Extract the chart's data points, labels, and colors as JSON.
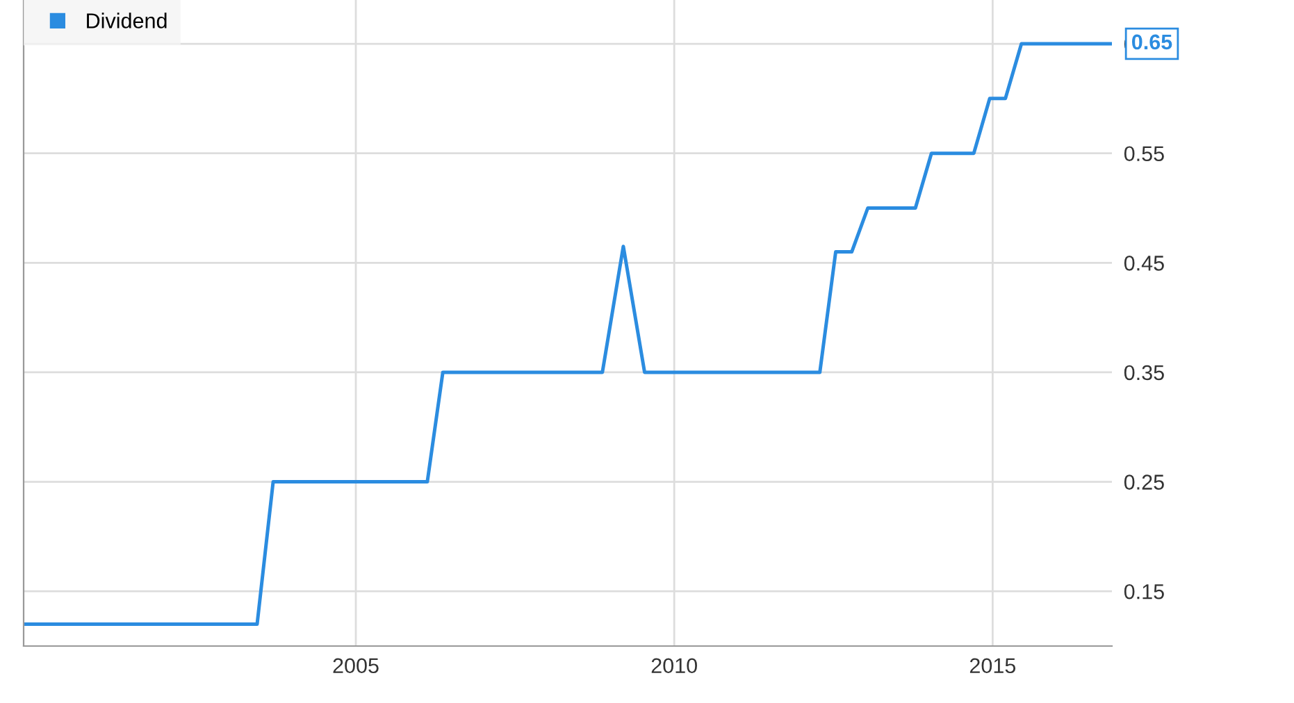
{
  "chart_data": {
    "type": "line",
    "xlim": [
      "1999-10",
      "2016-11"
    ],
    "xticks": [
      "2005",
      "2010",
      "2015"
    ],
    "ylim": [
      0.1,
      0.69
    ],
    "yticks": [
      0.15,
      0.25,
      0.35,
      0.45,
      0.55,
      0.65
    ],
    "grid": true,
    "legend": "top left",
    "series": [
      {
        "name": "Dividend",
        "color": "#2b8ce0",
        "x": [
          "1999-10",
          "2003-06",
          "2003-09",
          "2006-02",
          "2006-05",
          "2008-11",
          "2009-03",
          "2009-07",
          "2012-04",
          "2012-07",
          "2012-10",
          "2013-01",
          "2013-10",
          "2014-01",
          "2014-09",
          "2014-12",
          "2015-03",
          "2015-06",
          "2016-11"
        ],
        "values": [
          0.12,
          0.12,
          0.25,
          0.25,
          0.35,
          0.35,
          0.465,
          0.35,
          0.35,
          0.46,
          0.46,
          0.5,
          0.5,
          0.55,
          0.55,
          0.6,
          0.6,
          0.65,
          0.65
        ]
      }
    ],
    "annotations": [
      {
        "text": "0.65",
        "x": "2016-11",
        "y": 0.65
      }
    ]
  }
}
